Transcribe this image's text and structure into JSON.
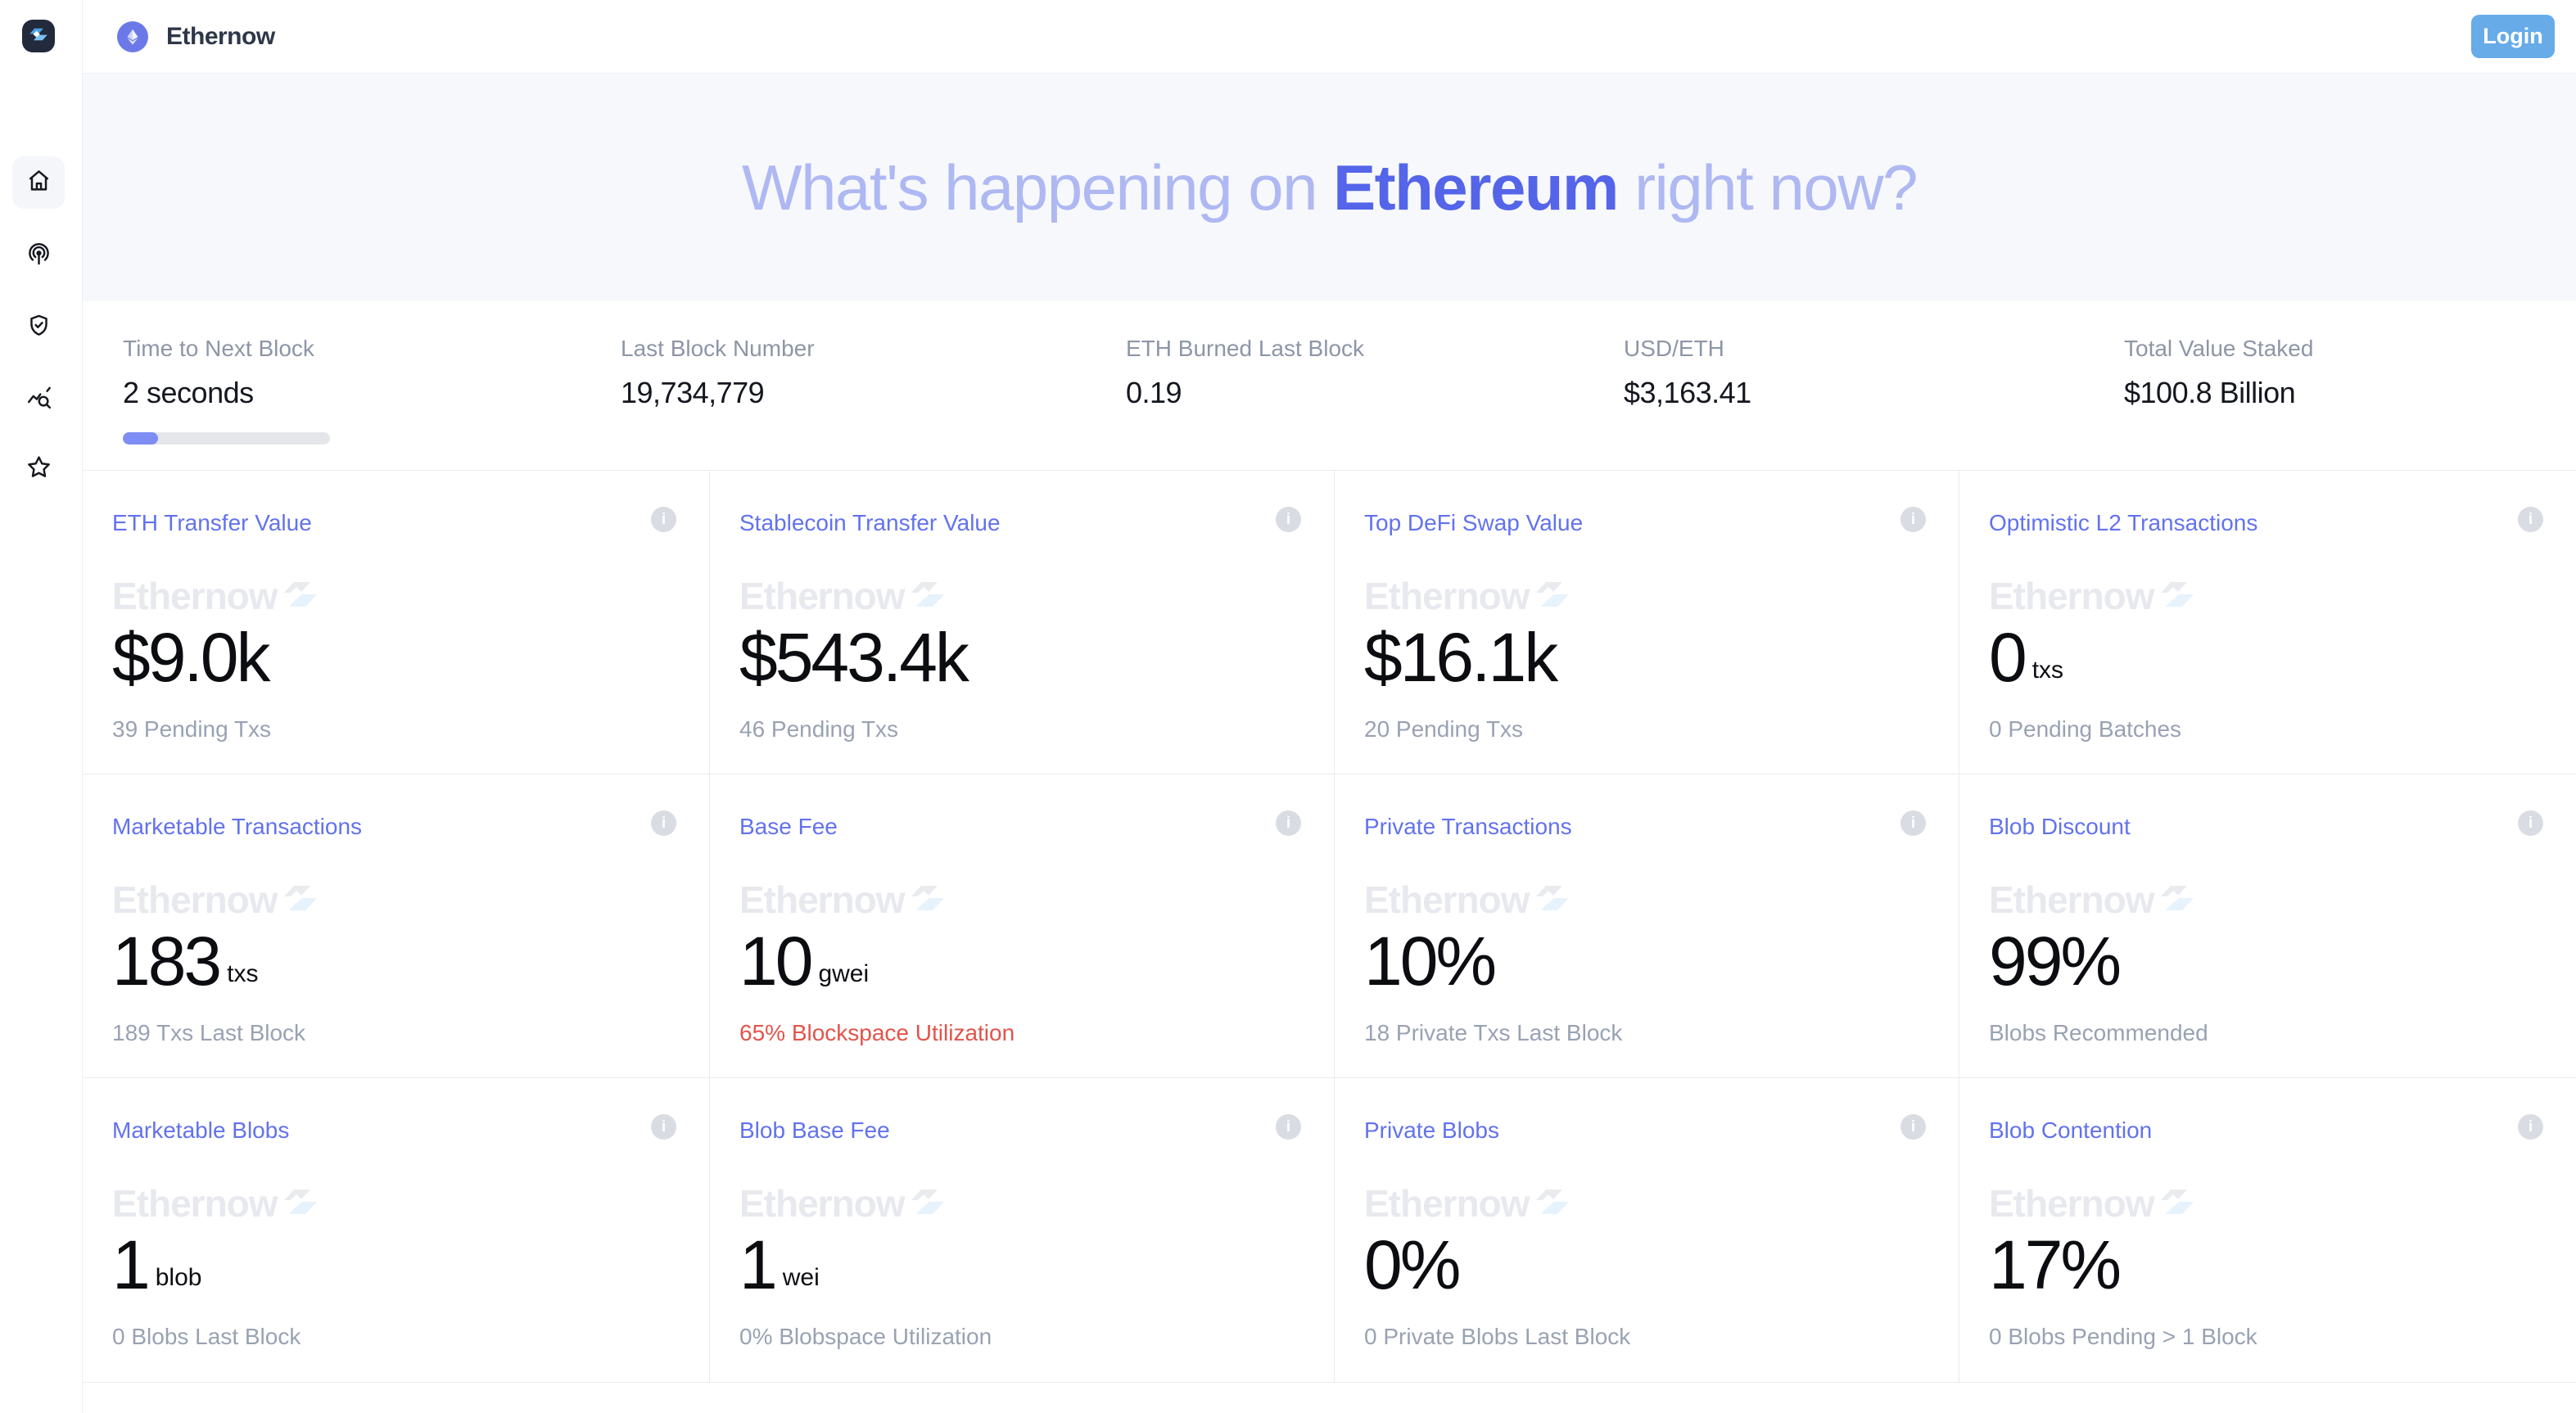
{
  "header": {
    "brand": "Ethernow",
    "login_label": "Login"
  },
  "hero": {
    "prefix": "What's happening on ",
    "highlight": "Ethereum",
    "suffix": " right now?"
  },
  "stats": [
    {
      "label": "Time to Next Block",
      "value": "2 seconds",
      "progress_percent": 17
    },
    {
      "label": "Last Block Number",
      "value": "19,734,779"
    },
    {
      "label": "ETH Burned Last Block",
      "value": "0.19"
    },
    {
      "label": "USD/ETH",
      "value": "$3,163.41"
    },
    {
      "label": "Total Value Staked",
      "value": "$100.8 Billion"
    }
  ],
  "watermark": {
    "text": "Ethernow"
  },
  "cards": [
    {
      "title": "ETH Transfer Value",
      "value": "$9.0k",
      "subtitle": "39 Pending Txs"
    },
    {
      "title": "Stablecoin Transfer Value",
      "value": "$543.4k",
      "subtitle": "46 Pending Txs"
    },
    {
      "title": "Top DeFi Swap Value",
      "value": "$16.1k",
      "subtitle": "20 Pending Txs"
    },
    {
      "title": "Optimistic L2 Transactions",
      "value": "0",
      "unit": "txs",
      "subtitle": "0 Pending Batches"
    },
    {
      "title": "Marketable Transactions",
      "value": "183",
      "unit": "txs",
      "subtitle": "189 Txs Last Block"
    },
    {
      "title": "Base Fee",
      "value": "10",
      "unit": "gwei",
      "subtitle": "65% Blockspace Utilization",
      "alert": true
    },
    {
      "title": "Private Transactions",
      "value": "10%",
      "subtitle": "18 Private Txs Last Block"
    },
    {
      "title": "Blob Discount",
      "value": "99%",
      "subtitle": "Blobs Recommended"
    },
    {
      "title": "Marketable Blobs",
      "value": "1",
      "unit": "blob",
      "subtitle": "0 Blobs Last Block"
    },
    {
      "title": "Blob Base Fee",
      "value": "1",
      "unit": "wei",
      "subtitle": "0% Blobspace Utilization"
    },
    {
      "title": "Private Blobs",
      "value": "0%",
      "subtitle": "0 Private Blobs Last Block"
    },
    {
      "title": "Blob Contention",
      "value": "17%",
      "subtitle": "0 Blobs Pending > 1 Block"
    }
  ],
  "sidebar": {
    "items": [
      {
        "icon": "home-icon",
        "active": true
      },
      {
        "icon": "broadcast-icon"
      },
      {
        "icon": "shield-check-icon"
      },
      {
        "icon": "chart-search-icon"
      },
      {
        "icon": "star-icon"
      }
    ]
  },
  "colors": {
    "accent_periwinkle": "#6272ee",
    "hero_light": "#aeb8f2",
    "hero_strong": "#5465e9",
    "login_blue": "#67abe9",
    "alert_red": "#e2544a",
    "subtitle_gray": "#99a2b3",
    "progress_fill": "#7e8df3",
    "logo_navy": "#232a3c",
    "badge_purple": "#6b79e8"
  }
}
